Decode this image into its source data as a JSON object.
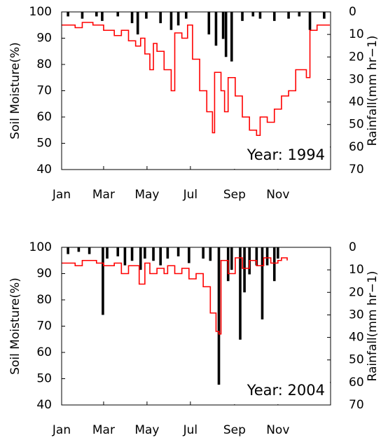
{
  "chart_data": [
    {
      "type": "line",
      "annotation": "Year: 1994",
      "ylabel": "Soil Moisture(%)",
      "y2label": "Rainfall(mm hr−1)",
      "xlim": [
        1,
        379
      ],
      "xticks": [
        {
          "value": 1,
          "label": "Jan"
        },
        {
          "value": 60,
          "label": "Mar"
        },
        {
          "value": 121,
          "label": "May"
        },
        {
          "value": 182,
          "label": "Jul"
        },
        {
          "value": 244,
          "label": "Sep"
        },
        {
          "value": 305,
          "label": "Nov"
        }
      ],
      "ylim": [
        40,
        100
      ],
      "yticks": [
        40,
        50,
        60,
        70,
        80,
        90,
        100
      ],
      "y2lim": [
        0,
        70
      ],
      "y2ticks": [
        0,
        10,
        20,
        30,
        40,
        50,
        60,
        70
      ],
      "y2_inverted": true,
      "series": [
        {
          "color": "#ff0000",
          "x": [
            1,
            20,
            30,
            45,
            60,
            75,
            85,
            95,
            105,
            112,
            118,
            125,
            130,
            135,
            145,
            155,
            160,
            170,
            178,
            185,
            195,
            205,
            213,
            216,
            225,
            230,
            235,
            245,
            255,
            265,
            275,
            280,
            290,
            300,
            310,
            320,
            330,
            345,
            350,
            360,
            378
          ],
          "values": [
            95,
            94,
            96,
            95,
            93,
            91,
            93,
            89,
            87,
            90,
            84,
            78,
            88,
            85,
            78,
            70,
            92,
            90,
            95,
            82,
            70,
            62,
            54,
            77,
            70,
            62,
            75,
            68,
            60,
            55,
            53,
            60,
            58,
            63,
            68,
            70,
            78,
            75,
            93,
            95,
            95
          ]
        },
        {
          "type": "bar",
          "axis": "y2",
          "color": "#000000",
          "x": [
            10,
            30,
            50,
            58,
            80,
            100,
            108,
            120,
            140,
            155,
            165,
            176,
            208,
            218,
            228,
            232,
            240,
            255,
            270,
            280,
            300,
            320,
            335,
            350,
            370
          ],
          "values": [
            2,
            3,
            2,
            4,
            2,
            5,
            10,
            3,
            5,
            8,
            6,
            3,
            10,
            15,
            12,
            20,
            22,
            4,
            2,
            3,
            4,
            3,
            2,
            8,
            3
          ]
        }
      ]
    },
    {
      "type": "line",
      "annotation": "Year: 2004",
      "ylabel": "Soil Moisture(%)",
      "y2label": "Rainfall(mm hr−1)",
      "xlim": [
        1,
        379
      ],
      "xticks": [
        {
          "value": 1,
          "label": "Jan"
        },
        {
          "value": 60,
          "label": "Mar"
        },
        {
          "value": 121,
          "label": "May"
        },
        {
          "value": 182,
          "label": "Jul"
        },
        {
          "value": 244,
          "label": "Sep"
        },
        {
          "value": 305,
          "label": "Nov"
        }
      ],
      "ylim": [
        40,
        100
      ],
      "yticks": [
        40,
        50,
        60,
        70,
        80,
        90,
        100
      ],
      "y2lim": [
        0,
        70
      ],
      "y2ticks": [
        0,
        10,
        20,
        30,
        40,
        50,
        60,
        70
      ],
      "y2_inverted": true,
      "series": [
        {
          "color": "#ff0000",
          "x": [
            1,
            20,
            30,
            50,
            60,
            75,
            85,
            95,
            110,
            118,
            125,
            135,
            145,
            150,
            160,
            170,
            180,
            190,
            200,
            210,
            218,
            222,
            225,
            235,
            245,
            255,
            265,
            275,
            285,
            295,
            305,
            310,
            318
          ],
          "values": [
            94,
            93,
            95,
            94,
            93,
            94,
            90,
            93,
            86,
            94,
            90,
            92,
            90,
            93,
            90,
            92,
            88,
            90,
            85,
            75,
            68,
            67,
            95,
            90,
            96,
            92,
            95,
            93,
            96,
            94,
            95,
            96,
            95
          ]
        },
        {
          "type": "bar",
          "axis": "y2",
          "color": "#000000",
          "x": [
            10,
            25,
            40,
            59,
            65,
            80,
            90,
            100,
            112,
            118,
            130,
            140,
            150,
            165,
            180,
            200,
            210,
            222,
            235,
            240,
            252,
            258,
            265,
            275,
            283,
            290,
            300,
            305
          ],
          "values": [
            3,
            2,
            3,
            30,
            5,
            4,
            8,
            6,
            10,
            5,
            6,
            8,
            5,
            4,
            7,
            5,
            6,
            61,
            15,
            10,
            41,
            20,
            12,
            8,
            32,
            8,
            15,
            5
          ]
        }
      ]
    }
  ]
}
